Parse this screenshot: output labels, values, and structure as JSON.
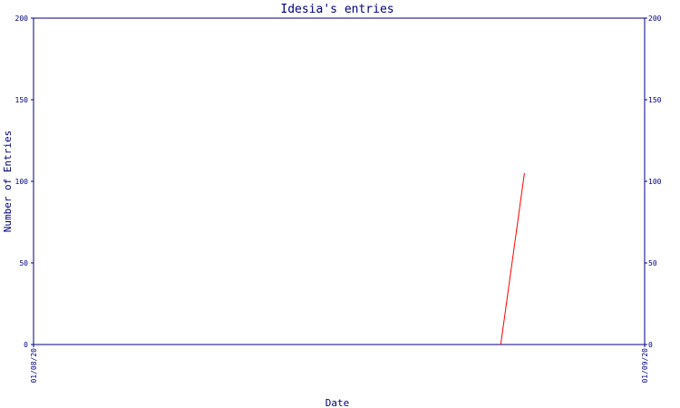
{
  "chart_data": {
    "type": "line",
    "title": "Idesia's entries",
    "xlabel": "Date",
    "ylabel": "Number of Entries",
    "x_ticks": [
      "01/08/20",
      "01/09/20"
    ],
    "xlim": [
      0,
      31
    ],
    "ylim": [
      0,
      200
    ],
    "y_ticks": [
      0,
      50,
      100,
      150,
      200
    ],
    "y_tick_labels": [
      "0",
      "50",
      "100",
      "150",
      "200"
    ],
    "grid": false,
    "series": [
      {
        "x": [
          23.7,
          24.9
        ],
        "y": [
          0,
          105
        ]
      }
    ],
    "colors": {
      "axes": "#000080",
      "text": "#000080",
      "line": "#ff0000",
      "background": "#ffffff"
    }
  }
}
